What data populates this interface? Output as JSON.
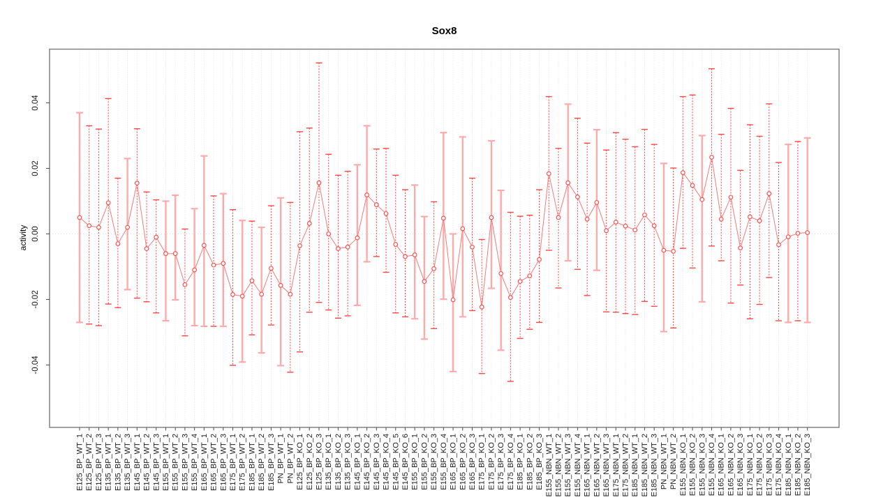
{
  "chart_data": {
    "type": "line",
    "subtype": "points-with-error-bars",
    "title": "Sox8",
    "xlabel": "",
    "ylabel": "activity",
    "ylim": [
      -0.059,
      0.0565
    ],
    "yticks": [
      -0.04,
      -0.02,
      0.0,
      0.02,
      0.04
    ],
    "ytick_labels": [
      "-0.04",
      "-0.02",
      "0.00",
      "0.02",
      "0.04"
    ],
    "grid": "vertical dotted gridline at every category; dotted horizontal line at y=0",
    "legend_position": "none",
    "categories": [
      "E125_BP_WT_1",
      "E125_BP_WT_2",
      "E125_BP_WT_3",
      "E135_BP_WT_1",
      "E135_BP_WT_2",
      "E135_BP_WT_3",
      "E145_BP_WT_1",
      "E145_BP_WT_2",
      "E145_BP_WT_3",
      "E155_BP_WT_1",
      "E155_BP_WT_2",
      "E155_BP_WT_3",
      "E155_BP_WT_4",
      "E165_BP_WT_1",
      "E165_BP_WT_2",
      "E165_BP_WT_3",
      "E175_BP_WT_1",
      "E175_BP_WT_2",
      "E185_BP_WT_1",
      "E185_BP_WT_2",
      "E185_BP_WT_3",
      "PN_BP_WT_1",
      "PN_BP_WT_2",
      "E125_BP_KO_1",
      "E125_BP_KO_2",
      "E125_BP_KO_3",
      "E135_BP_KO_1",
      "E135_BP_KO_2",
      "E135_BP_KO_3",
      "E145_BP_KO_1",
      "E145_BP_KO_2",
      "E145_BP_KO_3",
      "E145_BP_KO_4",
      "E145_BP_KO_5",
      "E145_BP_KO_6",
      "E155_BP_KO_1",
      "E155_BP_KO_2",
      "E155_BP_KO_3",
      "E155_BP_KO_4",
      "E165_BP_KO_1",
      "E165_BP_KO_2",
      "E165_BP_KO_3",
      "E175_BP_KO_1",
      "E175_BP_KO_2",
      "E175_BP_KO_3",
      "E175_BP_KO_4",
      "E185_BP_KO_1",
      "E185_BP_KO_2",
      "E185_BP_KO_3",
      "E155_NBN_WT_1",
      "E155_NBN_WT_2",
      "E155_NBN_WT_3",
      "E155_NBN_WT_4",
      "E165_NBN_WT_1",
      "E165_NBN_WT_2",
      "E165_NBN_WT_3",
      "E175_NBN_WT_1",
      "E175_NBN_WT_2",
      "E185_NBN_WT_1",
      "E185_NBN_WT_2",
      "E185_NBN_WT_3",
      "PN_NBN_WT_1",
      "PN_NBN_WT_2",
      "E155_NBN_KO_1",
      "E155_NBN_KO_2",
      "E155_NBN_KO_3",
      "E155_NBN_KO_4",
      "E165_NBN_KO_1",
      "E165_NBN_KO_2",
      "E165_NBN_KO_3",
      "E175_NBN_KO_1",
      "E175_NBN_KO_2",
      "E175_NBN_KO_3",
      "E175_NBN_KO_4",
      "E185_NBN_KO_1",
      "E185_NBN_KO_2",
      "E185_NBN_KO_3"
    ],
    "series": [
      {
        "name": "activity",
        "values": [
          0.005,
          0.0025,
          0.002,
          0.0095,
          -0.003,
          0.002,
          0.0155,
          -0.0045,
          -0.001,
          -0.006,
          -0.006,
          -0.0155,
          -0.011,
          -0.0035,
          -0.0095,
          -0.009,
          -0.0185,
          -0.019,
          -0.0143,
          -0.0184,
          -0.0105,
          -0.0157,
          -0.0184,
          -0.0036,
          0.0032,
          0.0156,
          0.0,
          -0.0045,
          -0.004,
          -0.0012,
          0.0119,
          0.0089,
          0.0062,
          -0.0032,
          -0.0069,
          -0.0064,
          -0.0145,
          -0.0106,
          0.0048,
          -0.0201,
          0.0016,
          -0.004,
          -0.0223,
          0.005,
          -0.0121,
          -0.0194,
          -0.0145,
          -0.0128,
          -0.0078,
          0.0184,
          0.005,
          0.0156,
          0.0113,
          0.0045,
          0.0096,
          0.001,
          0.0036,
          0.0024,
          0.0012,
          0.0058,
          0.0025,
          -0.005,
          -0.0053,
          0.0187,
          0.0148,
          0.0105,
          0.0234,
          0.0045,
          0.0112,
          -0.0043,
          0.0052,
          0.004,
          0.0123,
          -0.0033,
          -0.0009,
          0.0002,
          0.0004
        ],
        "upper": [
          0.037,
          0.033,
          0.032,
          0.0413,
          0.017,
          0.023,
          0.0321,
          0.0128,
          0.0104,
          0.01,
          0.0118,
          0.0015,
          0.0077,
          0.0238,
          0.0116,
          0.0123,
          0.0074,
          0.0041,
          0.0039,
          0.002,
          0.0086,
          0.011,
          0.0096,
          0.0312,
          0.0323,
          0.0522,
          0.0243,
          0.0179,
          0.0191,
          0.0211,
          0.033,
          0.0259,
          0.0261,
          0.0179,
          0.0135,
          0.0149,
          0.0053,
          0.0098,
          0.0309,
          0.0,
          0.0296,
          0.017,
          -0.0017,
          0.0284,
          0.0133,
          0.0066,
          0.0054,
          0.0057,
          0.0135,
          0.0419,
          0.0261,
          0.0396,
          0.0353,
          0.0277,
          0.0318,
          0.0256,
          0.0309,
          0.0289,
          0.0266,
          0.0319,
          0.0273,
          0.0215,
          0.0201,
          0.0419,
          0.0424,
          0.03,
          0.0504,
          0.0304,
          0.0383,
          0.0194,
          0.0333,
          0.0298,
          0.0397,
          0.0218,
          0.0273,
          0.0282,
          0.0293
        ],
        "lower": [
          -0.027,
          -0.0275,
          -0.028,
          -0.0214,
          -0.0225,
          -0.017,
          -0.0196,
          -0.0207,
          -0.0241,
          -0.0265,
          -0.0201,
          -0.0311,
          -0.028,
          -0.0282,
          -0.0282,
          -0.0282,
          -0.0401,
          -0.0391,
          -0.0308,
          -0.0363,
          -0.0278,
          -0.0402,
          -0.0422,
          -0.036,
          -0.0239,
          -0.0209,
          -0.0232,
          -0.0257,
          -0.025,
          -0.0218,
          -0.0085,
          -0.0069,
          -0.0117,
          -0.0241,
          -0.0253,
          -0.0259,
          -0.0321,
          -0.0289,
          -0.0199,
          -0.042,
          -0.0253,
          -0.0234,
          -0.0426,
          -0.0166,
          -0.0355,
          -0.045,
          -0.0319,
          -0.0291,
          -0.027,
          -0.005,
          -0.0165,
          -0.0082,
          -0.0108,
          -0.0188,
          -0.0111,
          -0.0238,
          -0.0239,
          -0.0243,
          -0.0246,
          -0.0206,
          -0.0221,
          -0.0298,
          -0.0287,
          -0.0044,
          -0.0104,
          -0.0207,
          -0.0037,
          -0.0082,
          -0.0211,
          -0.0156,
          -0.0259,
          -0.0215,
          -0.0133,
          -0.0265,
          -0.027,
          -0.0265,
          -0.027
        ]
      }
    ],
    "colors": {
      "series": "#ff4444",
      "series_pale": "#ffaaaa",
      "point_stroke": "#ff5050",
      "connect_line": "#f87878",
      "grid": "#e4e4e4",
      "zero_line": "#dcdcdc",
      "box": "#828282",
      "tick": "#4d4d4d",
      "text": "#1a1a1a"
    }
  }
}
